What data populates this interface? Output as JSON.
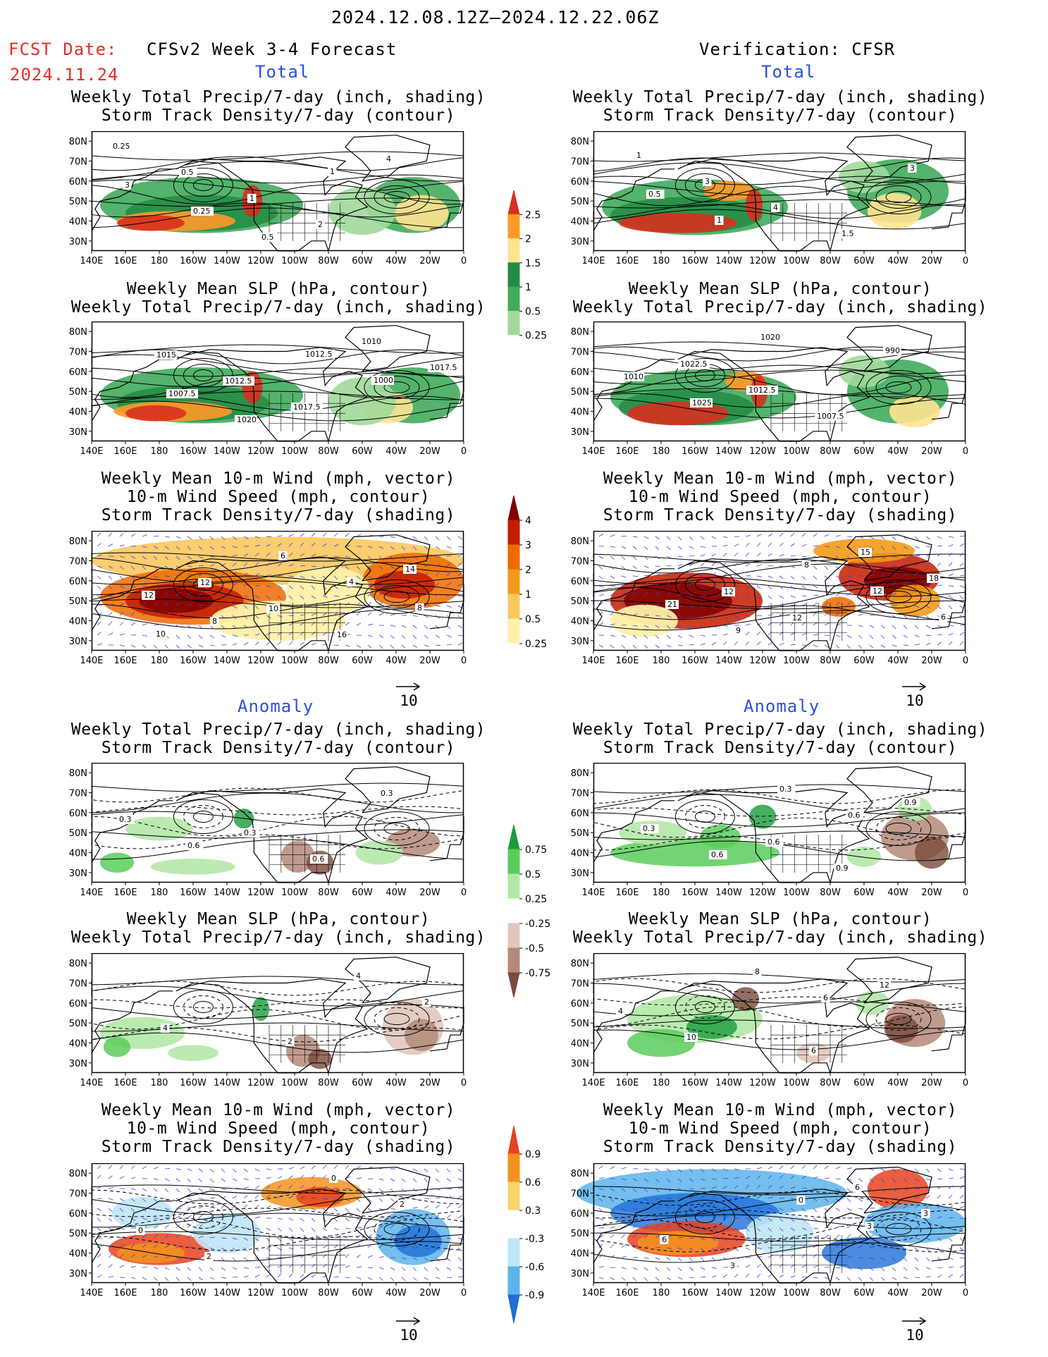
{
  "header": {
    "date_range": "2024.12.08.12Z—2024.12.22.06Z",
    "fcst_label": "FCST Date:",
    "fcst_date": "2024.11.24",
    "model_title": "CFSv2 Week 3-4 Forecast",
    "verification": "Verification: CFSR"
  },
  "sections": {
    "total": "Total",
    "anomaly": "Anomaly"
  },
  "panel_titles": {
    "precip_storm": [
      "Weekly Total Precip/7-day (inch, shading)",
      "Storm Track Density/7-day (contour)"
    ],
    "slp_precip": [
      "Weekly Mean SLP (hPa, contour)",
      "Weekly Total Precip/7-day (inch, shading)"
    ],
    "wind_storm": [
      "Weekly Mean 10-m Wind (mph, vector)",
      "10-m Wind Speed (mph, contour)",
      "Storm Track Density/7-day (shading)"
    ]
  },
  "axes": {
    "lon_labels": [
      "140E",
      "160E",
      "180",
      "160W",
      "140W",
      "120W",
      "100W",
      "80W",
      "60W",
      "40W",
      "20W",
      "0"
    ],
    "lat_labels": [
      "80N",
      "70N",
      "60N",
      "50N",
      "40N",
      "30N"
    ]
  },
  "vector_ref": "10",
  "colorbars": {
    "precip_total": {
      "labels": [
        "2.5",
        "2",
        "1.5",
        "1",
        "0.5",
        "0.25"
      ],
      "colors": [
        "#d7301f",
        "#fe9929",
        "#fee391",
        "#238b45",
        "#41ab5d",
        "#a1d99b",
        "#ffffff"
      ]
    },
    "storm_total": {
      "labels": [
        "4",
        "3",
        "2",
        "1",
        "0.5",
        "0.25"
      ],
      "colors": [
        "#7f0000",
        "#c51b00",
        "#ef6a00",
        "#f49a1a",
        "#fbc860",
        "#fff0a8",
        "#ffffff"
      ]
    },
    "precip_anom": {
      "labels": [
        "0.75",
        "0.5",
        "0.25",
        "-0.25",
        "-0.5",
        "-0.75"
      ],
      "colors": [
        "#1a9b3c",
        "#5bcc5b",
        "#b4e8a8",
        "#ffffff",
        "#e1c7bb",
        "#b48979",
        "#7b4a3a"
      ]
    },
    "storm_anom": {
      "labels": [
        "0.9",
        "0.6",
        "0.3",
        "-0.3",
        "-0.6",
        "-0.9"
      ],
      "colors": [
        "#e8421e",
        "#f5921e",
        "#fbd36a",
        "#ffffff",
        "#bfe6f5",
        "#5db4eb",
        "#1f6fd6"
      ]
    }
  },
  "panels": [
    {
      "id": "fc-total-precip",
      "title_key": "precip_storm",
      "labels": [
        "0.25",
        "0.5",
        "1",
        "2",
        "4",
        "3",
        "0.25",
        "0.5",
        "1"
      ]
    },
    {
      "id": "vf-total-precip",
      "title_key": "precip_storm",
      "labels": [
        "1",
        "3",
        "4",
        "1.5",
        "3",
        "0.5",
        "1"
      ]
    },
    {
      "id": "fc-total-slp",
      "title_key": "slp_precip",
      "labels": [
        "1015",
        "1012.5",
        "1017.5",
        "1010",
        "1017.5",
        "1007.5",
        "1020",
        "1012.5",
        "1000"
      ]
    },
    {
      "id": "vf-total-slp",
      "title_key": "slp_precip",
      "labels": [
        "1022.5",
        "1012.5",
        "1007.5",
        "990",
        "1010",
        "1025",
        "1020"
      ]
    },
    {
      "id": "fc-total-wind",
      "title_key": "wind_storm",
      "labels": [
        "12",
        "10",
        "16",
        "14",
        "12",
        "8",
        "6",
        "4",
        "8",
        "10"
      ]
    },
    {
      "id": "vf-total-wind",
      "title_key": "wind_storm",
      "labels": [
        "12",
        "12",
        "15",
        "18",
        "21",
        "9",
        "8",
        "12",
        "6"
      ]
    },
    {
      "id": "fc-anom-precip",
      "title_key": "precip_storm",
      "labels": [
        "0.3",
        "0.6",
        "0.3",
        "0.3",
        "0.6"
      ]
    },
    {
      "id": "vf-anom-precip",
      "title_key": "precip_storm",
      "labels": [
        "0.6",
        "0.9",
        "0.9",
        "0.3",
        "0.6",
        "0.3",
        "0.6"
      ]
    },
    {
      "id": "fc-anom-slp",
      "title_key": "slp_precip",
      "labels": [
        "2",
        "4",
        "2",
        "4"
      ]
    },
    {
      "id": "vf-anom-slp",
      "title_key": "slp_precip",
      "labels": [
        "6",
        "12",
        "4",
        "10",
        "8",
        "6"
      ]
    },
    {
      "id": "fc-anom-wind",
      "title_key": "wind_storm",
      "labels": [
        "0",
        "2",
        "0",
        "2"
      ]
    },
    {
      "id": "vf-anom-wind",
      "title_key": "wind_storm",
      "labels": [
        "6",
        "3",
        "6",
        "3",
        "0",
        "3"
      ]
    }
  ]
}
